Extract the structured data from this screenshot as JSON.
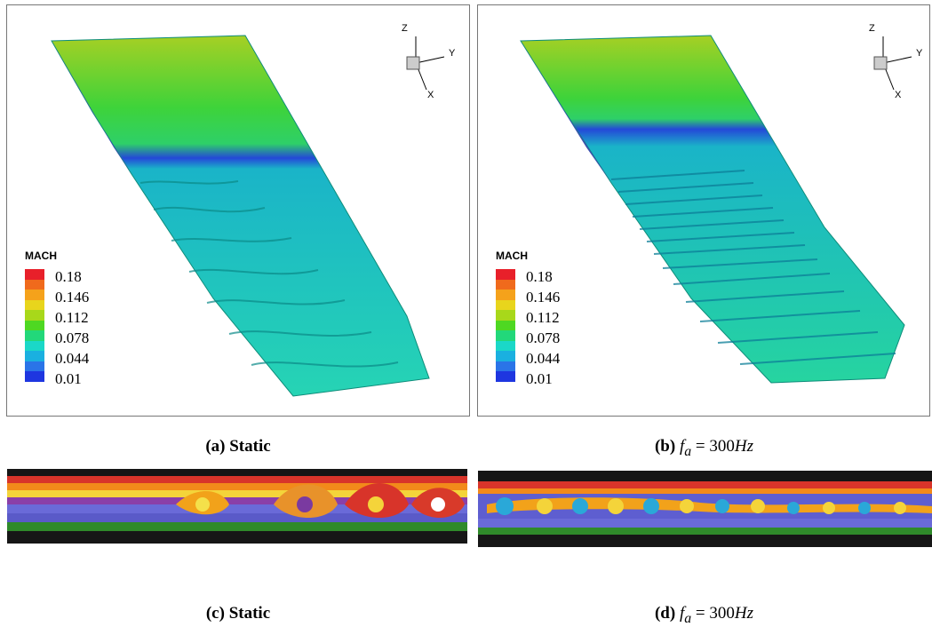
{
  "panels": {
    "a": {
      "caption_letter": "(a)",
      "caption_text": "Static"
    },
    "b": {
      "caption_letter": "(b)",
      "caption_var": "f",
      "caption_sub": "a",
      "caption_eq": " = 300",
      "caption_unit": "Hz"
    },
    "c": {
      "caption_letter": "(c)",
      "caption_text": "Static"
    },
    "d": {
      "caption_letter": "(d)",
      "caption_var": "f",
      "caption_sub": "a",
      "caption_eq": " = 300",
      "caption_unit": "Hz"
    }
  },
  "legend": {
    "title": "MACH",
    "labels": [
      "0.18",
      "0.146",
      "0.112",
      "0.078",
      "0.044",
      "0.01"
    ],
    "colors": [
      "#e8202a",
      "#f06a1c",
      "#f5a21b",
      "#e8d51c",
      "#a8d81a",
      "#4ed822",
      "#22d87a",
      "#1ad8c8",
      "#1ab0e0",
      "#2a74e8",
      "#1e36e0"
    ]
  },
  "axes": {
    "z": "Z",
    "y": "Y",
    "x": "X"
  }
}
